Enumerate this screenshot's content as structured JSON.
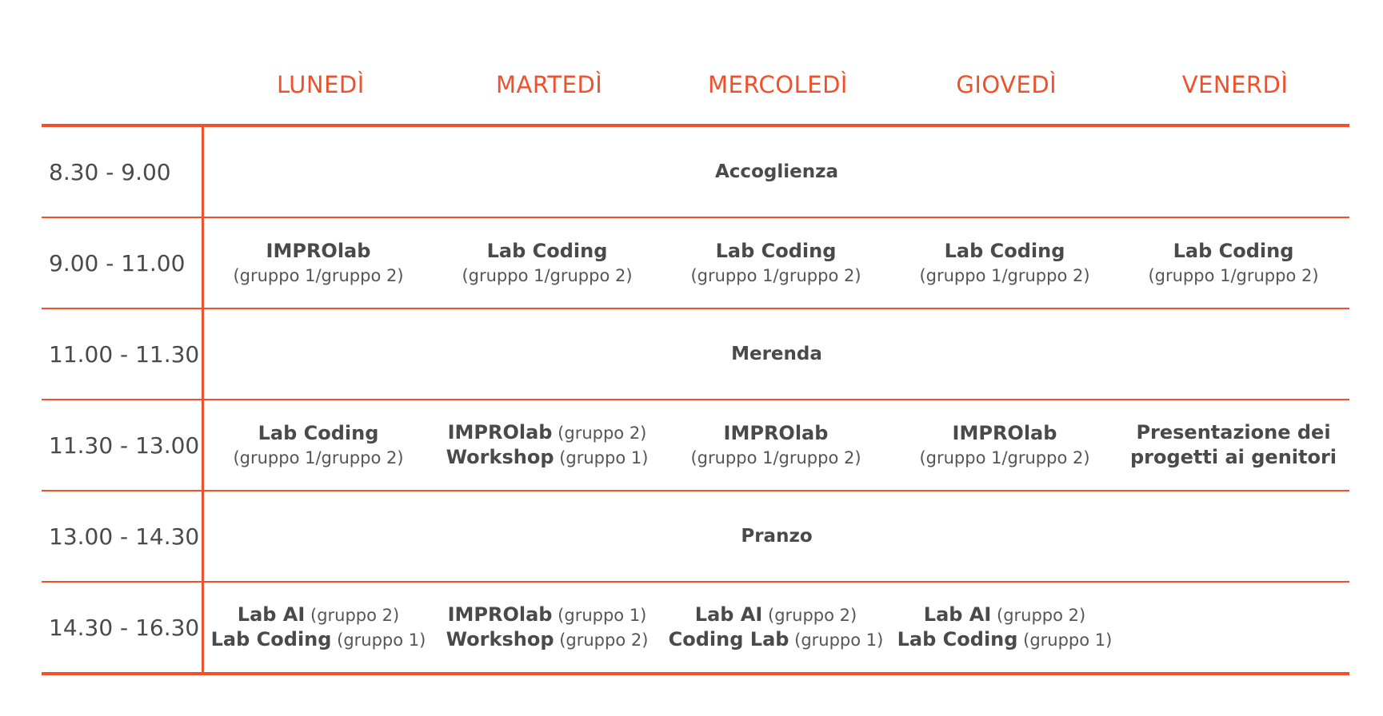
{
  "days": [
    "LUNEDÌ",
    "MARTEDÌ",
    "MERCOLEDÌ",
    "GIOVEDÌ",
    "VENERDÌ"
  ],
  "rows": [
    {
      "time": "8.30 - 9.00",
      "span": "Accoglienza"
    },
    {
      "time": "9.00 - 11.00",
      "cells": [
        {
          "lines": [
            {
              "bold": "IMPROlab",
              "light": ""
            },
            {
              "bold": "",
              "light": "(gruppo 1/gruppo 2)"
            }
          ]
        },
        {
          "lines": [
            {
              "bold": "Lab Coding",
              "light": ""
            },
            {
              "bold": "",
              "light": "(gruppo 1/gruppo 2)"
            }
          ]
        },
        {
          "lines": [
            {
              "bold": "Lab Coding",
              "light": ""
            },
            {
              "bold": "",
              "light": "(gruppo 1/gruppo 2)"
            }
          ]
        },
        {
          "lines": [
            {
              "bold": "Lab Coding",
              "light": ""
            },
            {
              "bold": "",
              "light": "(gruppo 1/gruppo 2)"
            }
          ]
        },
        {
          "lines": [
            {
              "bold": "Lab Coding",
              "light": ""
            },
            {
              "bold": "",
              "light": "(gruppo 1/gruppo 2)"
            }
          ]
        }
      ]
    },
    {
      "time": "11.00 - 11.30",
      "span": "Merenda"
    },
    {
      "time": "11.30 - 13.00",
      "cells": [
        {
          "lines": [
            {
              "bold": "Lab Coding",
              "light": ""
            },
            {
              "bold": "",
              "light": "(gruppo 1/gruppo 2)"
            }
          ]
        },
        {
          "lines": [
            {
              "bold": "IMPROlab",
              "light": "(gruppo 2)"
            },
            {
              "bold": "Workshop",
              "light": "(gruppo 1)"
            }
          ]
        },
        {
          "lines": [
            {
              "bold": "IMPROlab",
              "light": ""
            },
            {
              "bold": "",
              "light": "(gruppo 1/gruppo 2)"
            }
          ]
        },
        {
          "lines": [
            {
              "bold": "IMPROlab",
              "light": ""
            },
            {
              "bold": "",
              "light": "(gruppo 1/gruppo 2)"
            }
          ]
        },
        {
          "lines": [
            {
              "bold": "Presentazione dei",
              "light": ""
            },
            {
              "bold": "progetti ai genitori",
              "light": ""
            }
          ]
        }
      ]
    },
    {
      "time": "13.00 - 14.30",
      "span": "Pranzo"
    },
    {
      "time": "14.30 - 16.30",
      "cells": [
        {
          "lines": [
            {
              "bold": "Lab AI",
              "light": "(gruppo 2)"
            },
            {
              "bold": "Lab Coding",
              "light": "(gruppo 1)"
            }
          ]
        },
        {
          "lines": [
            {
              "bold": "IMPROlab",
              "light": "(gruppo 1)"
            },
            {
              "bold": "Workshop",
              "light": "(gruppo 2)"
            }
          ]
        },
        {
          "lines": [
            {
              "bold": "Lab AI",
              "light": "(gruppo 2)"
            },
            {
              "bold": "Coding Lab",
              "light": "(gruppo 1)"
            }
          ]
        },
        {
          "lines": [
            {
              "bold": "Lab AI",
              "light": "(gruppo 2)"
            },
            {
              "bold": "Lab Coding",
              "light": "(gruppo 1)"
            }
          ]
        },
        {
          "lines": []
        }
      ]
    }
  ],
  "colors": {
    "accent": "#f0502a",
    "text": "#4a4a4a"
  }
}
